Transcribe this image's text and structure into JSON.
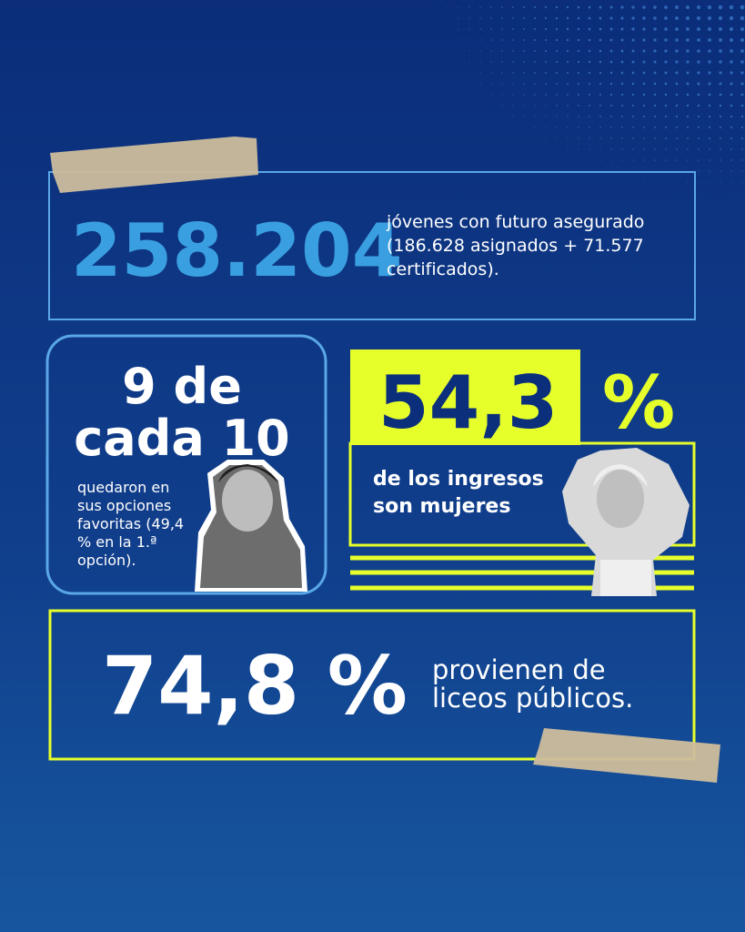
{
  "stat_total": {
    "value": "258.204",
    "lines": [
      "jóvenes con futuro asegurado",
      "(186.628 asignados + 71.577",
      "certificados)."
    ]
  },
  "stat_options": {
    "headline": [
      "9 de",
      "cada 10"
    ],
    "lines": [
      "quedaron en",
      "sus opciones",
      "favoritas (49,4",
      "% en la 1.ª",
      "opción)."
    ]
  },
  "stat_women": {
    "value": "54,3",
    "unit": "%",
    "lines": [
      "de los ingresos",
      "son mujeres"
    ]
  },
  "stat_public": {
    "value": "74,8 %",
    "lines": [
      "provienen de",
      "liceos públicos."
    ]
  }
}
